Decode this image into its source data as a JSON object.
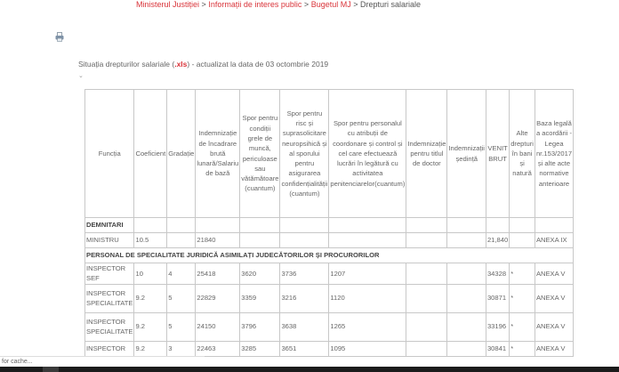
{
  "breadcrumb": {
    "items": [
      "Ministerul Justiției",
      "Informații de interes public",
      "Bugetul MJ"
    ],
    "separator": ">",
    "current": "Drepturi salariale"
  },
  "print_icon": "printer-icon",
  "intro": {
    "text_before": "Situația drepturilor salariale (",
    "link": ".xls",
    "text_after": ") - actualizat la data de 03 octombrie 2019",
    "chevron": "⌄"
  },
  "table": {
    "headers": [
      "Funcția",
      "Coeficient",
      "Gradație",
      "Indemnizație de încadrare brută lunară/Salariu de bază",
      "Spor pentru condiții grele de muncă, periculoase sau vătămătoare (cuantum)",
      "Spor pentru risc și suprasolicitare neuropsihică și al sporului pentru asigurarea confidențialității (cuantum)",
      "Spor pentru personalul cu atribuții de coordonare și control și cel care efectuează lucrări în legătură cu activitatea penitenciarelor(cuantum)",
      "Indemnizație pentru titlul de doctor",
      "Indemnizații ședință",
      "VENIT BRUT",
      "Alte drepturi în bani și natură",
      "Baza legală a acordării - Legea nr.153/2017 și alte acte normative anterioare"
    ],
    "sections": [
      {
        "title": "DEMNITARI",
        "rows": [
          [
            "MINISTRU",
            "10.5",
            "",
            "21840",
            "",
            "",
            "",
            "",
            "",
            "21,840",
            "",
            "ANEXA IX"
          ]
        ]
      },
      {
        "title": "PERSONAL DE SPECIALITATE JURIDICĂ ASIMILAȚI JUDECĂTORILOR ȘI PROCURORILOR",
        "rows": [
          [
            "INSPECTOR SEF",
            "10",
            "4",
            "25418",
            "3620",
            "3736",
            "1207",
            "",
            "",
            "34328",
            "*",
            "ANEXA V"
          ],
          [
            "INSPECTOR SPECIALITATE",
            "9.2",
            "5",
            "22829",
            "3359",
            "3216",
            "1120",
            "",
            "",
            "30871",
            "*",
            "ANEXA V"
          ],
          [
            "INSPECTOR SPECIALITATE",
            "9.2",
            "5",
            "24150",
            "3796",
            "3638",
            "1265",
            "",
            "",
            "33196",
            "*",
            "ANEXA V"
          ],
          [
            "INSPECTOR",
            "9.2",
            "3",
            "22463",
            "3285",
            "3651",
            "1095",
            "",
            "",
            "30841",
            "*",
            "ANEXA V"
          ]
        ]
      }
    ]
  },
  "status_bar": {
    "text": "for cache..."
  }
}
